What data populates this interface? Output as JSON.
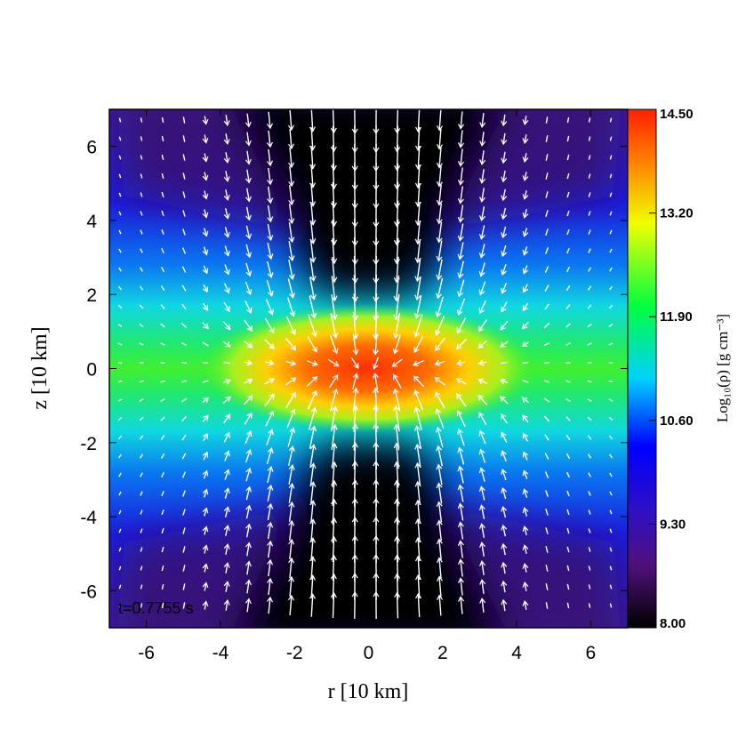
{
  "chart_data": {
    "type": "heatmap",
    "xlabel": "r [10 km]",
    "ylabel": "z [10 km]",
    "annotation": "t=0.7755 s",
    "xlim": [
      -7,
      7
    ],
    "ylim": [
      -7,
      7
    ],
    "xticks": [
      -6,
      -4,
      -2,
      0,
      2,
      4,
      6
    ],
    "yticks": [
      -6,
      -4,
      -2,
      0,
      2,
      4,
      6
    ],
    "colorbar": {
      "label": "Log₁₀(ρ) [g cm⁻³]",
      "lim": [
        8,
        14.5
      ],
      "ticks": [
        {
          "value": 8,
          "label": "8.00"
        },
        {
          "value": 9.3,
          "label": "9.30"
        },
        {
          "value": 10.6,
          "label": "10.60"
        },
        {
          "value": 11.9,
          "label": "11.90"
        },
        {
          "value": 13.2,
          "label": "13.20"
        },
        {
          "value": 14.5,
          "label": "14.50"
        }
      ]
    }
  }
}
